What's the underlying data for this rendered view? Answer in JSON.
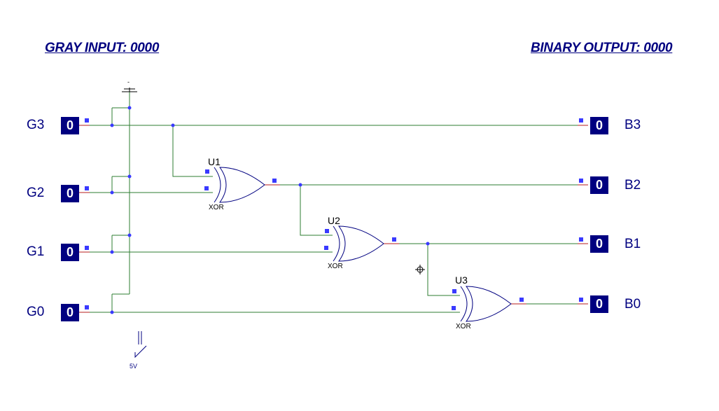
{
  "header": {
    "gray_input_label": "GRAY INPUT: 0000",
    "binary_output_label": "BINARY OUTPUT: 0000"
  },
  "inputs": [
    {
      "name": "G3",
      "value": "0"
    },
    {
      "name": "G2",
      "value": "0"
    },
    {
      "name": "G1",
      "value": "0"
    },
    {
      "name": "G0",
      "value": "0"
    }
  ],
  "outputs": [
    {
      "name": "B3",
      "value": "0"
    },
    {
      "name": "B2",
      "value": "0"
    },
    {
      "name": "B1",
      "value": "0"
    },
    {
      "name": "B0",
      "value": "0"
    }
  ],
  "gates": [
    {
      "ref": "U1",
      "type": "XOR"
    },
    {
      "ref": "U2",
      "type": "XOR"
    },
    {
      "ref": "U3",
      "type": "XOR"
    }
  ],
  "ground": {
    "label": "-"
  },
  "supply": {
    "label": "5V"
  },
  "colors": {
    "wire": "#2e7d32",
    "stub": "#b71c1c",
    "node": "#3a3aff",
    "text": "#000080"
  }
}
